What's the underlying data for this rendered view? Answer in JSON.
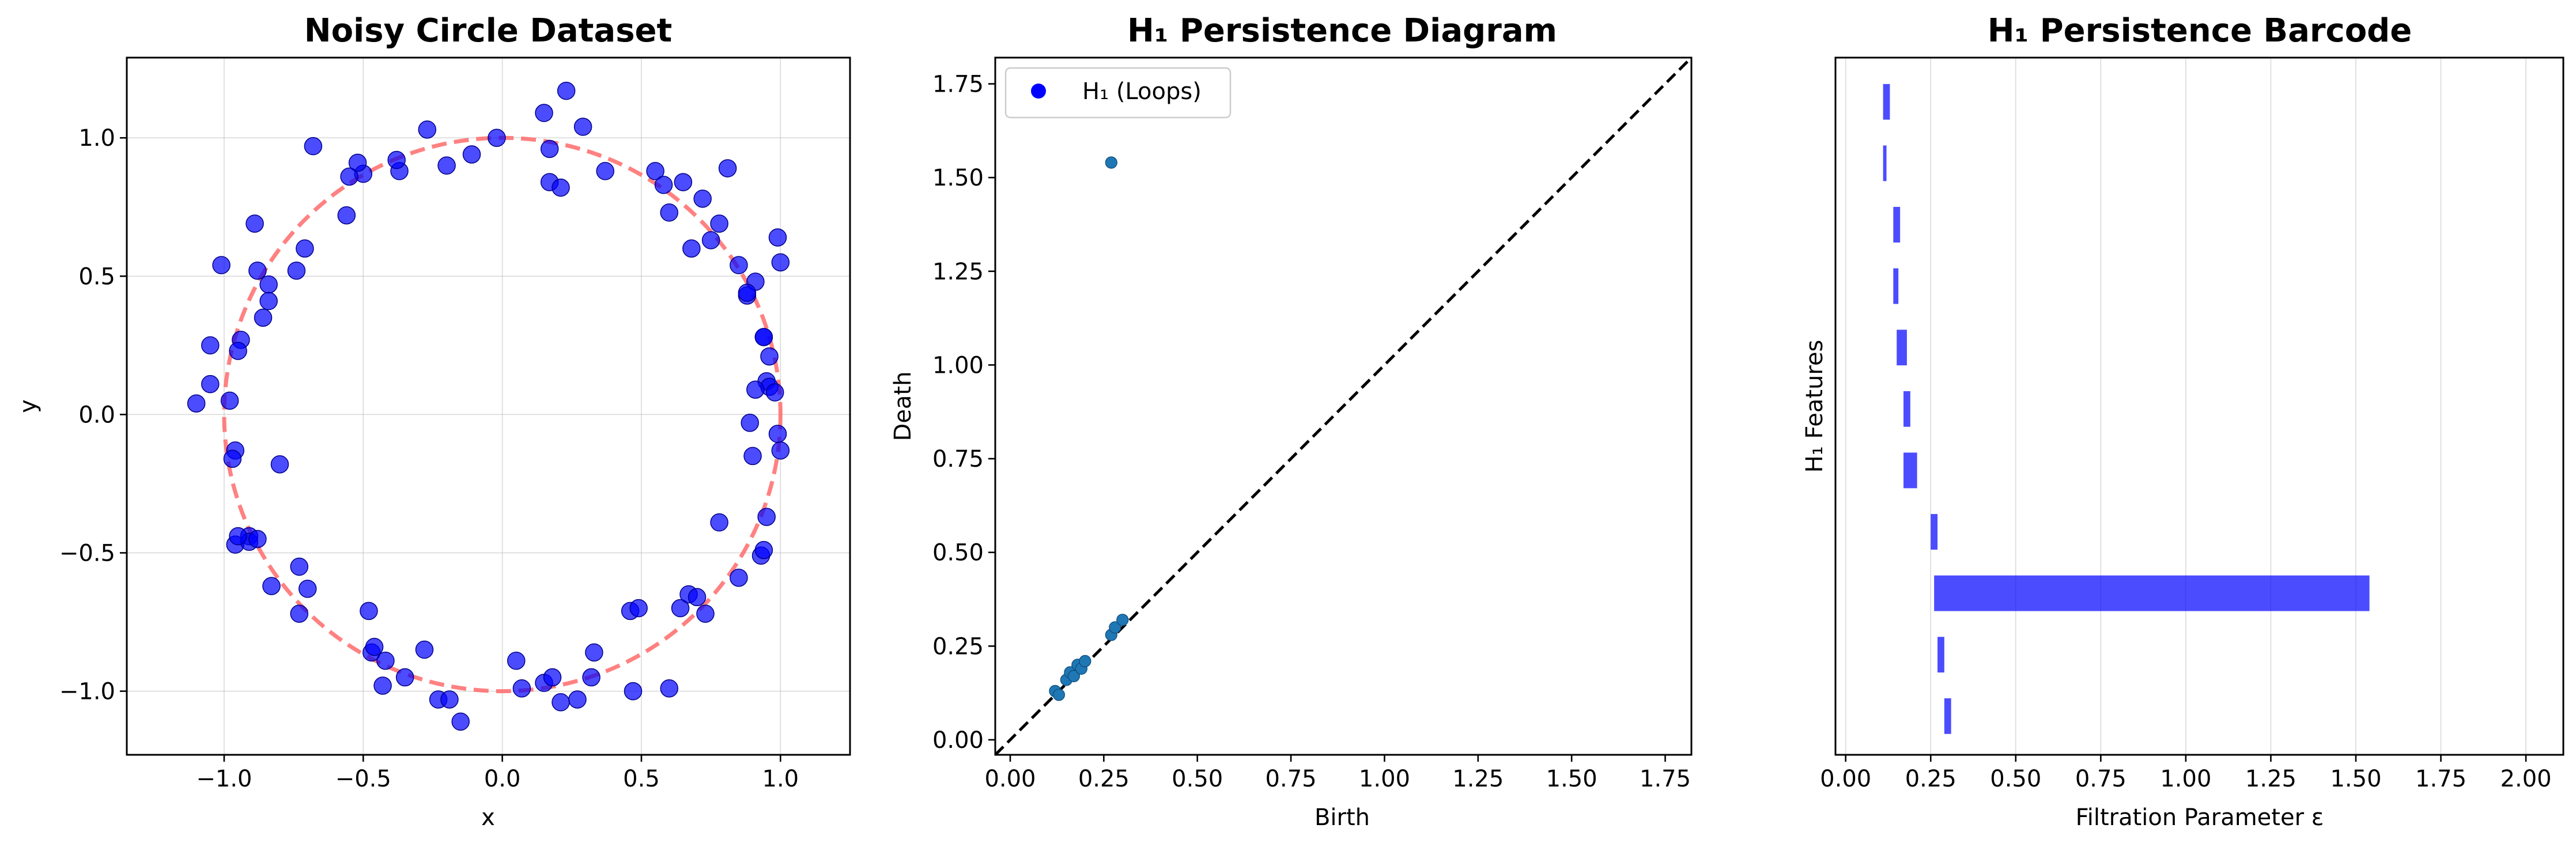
{
  "chart_data": [
    {
      "type": "scatter",
      "title": "Noisy Circle Dataset",
      "xlabel": "x",
      "ylabel": "y",
      "xlim": [
        -1.35,
        1.25
      ],
      "ylim": [
        -1.23,
        1.29
      ],
      "xticks": [
        -1.0,
        -0.5,
        0.0,
        0.5,
        1.0
      ],
      "xtick_labels": [
        "−1.0",
        "−0.5",
        "0.0",
        "0.5",
        "1.0"
      ],
      "yticks": [
        -1.0,
        -0.5,
        0.0,
        0.5,
        1.0
      ],
      "ytick_labels": [
        "−1.0",
        "−0.5",
        "0.0",
        "0.5",
        "1.0"
      ],
      "grid": true,
      "colors": {
        "points": "#0000ff",
        "circle": "#ff6b6b"
      },
      "reference_circle": {
        "radius": 1.0,
        "style": "dashed"
      },
      "x": [
        -0.02,
        0.15,
        0.17,
        0.17,
        0.21,
        0.23,
        0.29,
        0.37,
        0.55,
        0.58,
        0.6,
        0.65,
        0.68,
        0.72,
        0.75,
        0.78,
        0.81,
        0.85,
        0.88,
        0.91,
        0.94,
        0.95,
        0.96,
        0.99,
        1.0,
        -0.11,
        -0.2,
        -0.27,
        -0.37,
        -0.38,
        -0.5,
        -0.52,
        -0.55,
        -0.56,
        -0.68,
        -0.71,
        -0.74,
        -0.84,
        -0.84,
        -0.86,
        -0.88,
        -0.89,
        -0.94,
        -0.95,
        -0.98,
        -1.01,
        -1.05,
        -1.05,
        -1.1,
        -0.96,
        -0.8,
        -0.97,
        -0.96,
        -0.91,
        -0.91,
        -0.95,
        -0.88,
        -0.83,
        -0.73,
        -0.73,
        -0.7,
        -0.47,
        -0.48,
        -0.46,
        -0.42,
        -0.43,
        -0.35,
        -0.28,
        -0.23,
        -0.19,
        -0.15,
        0.05,
        0.07,
        0.15,
        0.18,
        0.21,
        0.27,
        0.32,
        0.33,
        0.46,
        0.49,
        0.47,
        0.6,
        0.64,
        0.67,
        0.7,
        0.73,
        0.78,
        0.85,
        0.93,
        0.95,
        0.94,
        0.9,
        0.89,
        0.99,
        1.0,
        0.96,
        0.98,
        0.91,
        0.88,
        0.94
      ],
      "y": [
        1.0,
        1.09,
        0.96,
        0.84,
        0.82,
        1.17,
        1.04,
        0.88,
        0.88,
        0.83,
        0.73,
        0.84,
        0.6,
        0.78,
        0.63,
        0.69,
        0.89,
        0.54,
        0.43,
        0.48,
        0.28,
        0.12,
        0.21,
        0.64,
        0.55,
        0.94,
        0.9,
        1.03,
        0.88,
        0.92,
        0.87,
        0.91,
        0.86,
        0.72,
        0.97,
        0.6,
        0.52,
        0.47,
        0.41,
        0.35,
        0.52,
        0.69,
        0.27,
        0.23,
        0.05,
        0.54,
        0.25,
        0.11,
        0.04,
        -0.13,
        -0.18,
        -0.16,
        -0.47,
        -0.44,
        -0.46,
        -0.44,
        -0.45,
        -0.62,
        -0.72,
        -0.55,
        -0.63,
        -0.86,
        -0.71,
        -0.84,
        -0.89,
        -0.98,
        -0.95,
        -0.85,
        -1.03,
        -1.03,
        -1.11,
        -0.89,
        -0.99,
        -0.97,
        -0.95,
        -1.04,
        -1.03,
        -0.95,
        -0.86,
        -0.71,
        -0.7,
        -1.0,
        -0.99,
        -0.7,
        -0.65,
        -0.66,
        -0.72,
        -0.39,
        -0.59,
        -0.51,
        -0.37,
        -0.49,
        -0.15,
        -0.03,
        -0.07,
        -0.13,
        0.1,
        0.08,
        0.09,
        0.44,
        0.28
      ]
    },
    {
      "type": "scatter",
      "title": "H₁ Persistence Diagram",
      "xlabel": "Birth",
      "ylabel": "Death",
      "xlim": [
        -0.04,
        1.82
      ],
      "ylim": [
        -0.04,
        1.82
      ],
      "xticks": [
        0.0,
        0.25,
        0.5,
        0.75,
        1.0,
        1.25,
        1.5,
        1.75
      ],
      "xtick_labels": [
        "0.00",
        "0.25",
        "0.50",
        "0.75",
        "1.00",
        "1.25",
        "1.50",
        "1.75"
      ],
      "yticks": [
        0.0,
        0.25,
        0.5,
        0.75,
        1.0,
        1.25,
        1.5,
        1.75
      ],
      "ytick_labels": [
        "0.00",
        "0.25",
        "0.50",
        "0.75",
        "1.00",
        "1.25",
        "1.50",
        "1.75"
      ],
      "grid": false,
      "legend": {
        "label": "H₁ (Loops)",
        "placement": "top-left",
        "color": "#0000ff"
      },
      "colors": {
        "points": "#1f77b4",
        "diagonal": "#000000"
      },
      "diagonal_line": true,
      "birth": [
        0.12,
        0.13,
        0.15,
        0.16,
        0.17,
        0.18,
        0.19,
        0.2,
        0.27,
        0.28,
        0.3,
        0.27
      ],
      "death": [
        0.13,
        0.12,
        0.16,
        0.18,
        0.17,
        0.2,
        0.19,
        0.21,
        0.28,
        0.3,
        0.32,
        1.54
      ]
    },
    {
      "type": "bar",
      "orientation": "horizontal",
      "title": "H₁ Persistence Barcode",
      "xlabel": "Filtration Parameter ε",
      "ylabel": "H₁ Features",
      "xlim": [
        -0.03,
        2.11
      ],
      "xticks": [
        0.0,
        0.25,
        0.5,
        0.75,
        1.0,
        1.25,
        1.5,
        1.75,
        2.0
      ],
      "xtick_labels": [
        "0.00",
        "0.25",
        "0.50",
        "0.75",
        "1.00",
        "1.25",
        "1.50",
        "1.75",
        "2.00"
      ],
      "grid": true,
      "colors": {
        "bars": "#0000ff"
      },
      "bars": [
        {
          "start": 0.11,
          "end": 0.13
        },
        {
          "start": 0.11,
          "end": 0.12
        },
        {
          "start": 0.14,
          "end": 0.16
        },
        {
          "start": 0.14,
          "end": 0.155
        },
        {
          "start": 0.15,
          "end": 0.18
        },
        {
          "start": 0.17,
          "end": 0.19
        },
        {
          "start": 0.17,
          "end": 0.21
        },
        {
          "start": 0.25,
          "end": 0.27
        },
        {
          "start": 0.26,
          "end": 1.54
        },
        {
          "start": 0.27,
          "end": 0.29
        },
        {
          "start": 0.29,
          "end": 0.31
        }
      ]
    }
  ]
}
